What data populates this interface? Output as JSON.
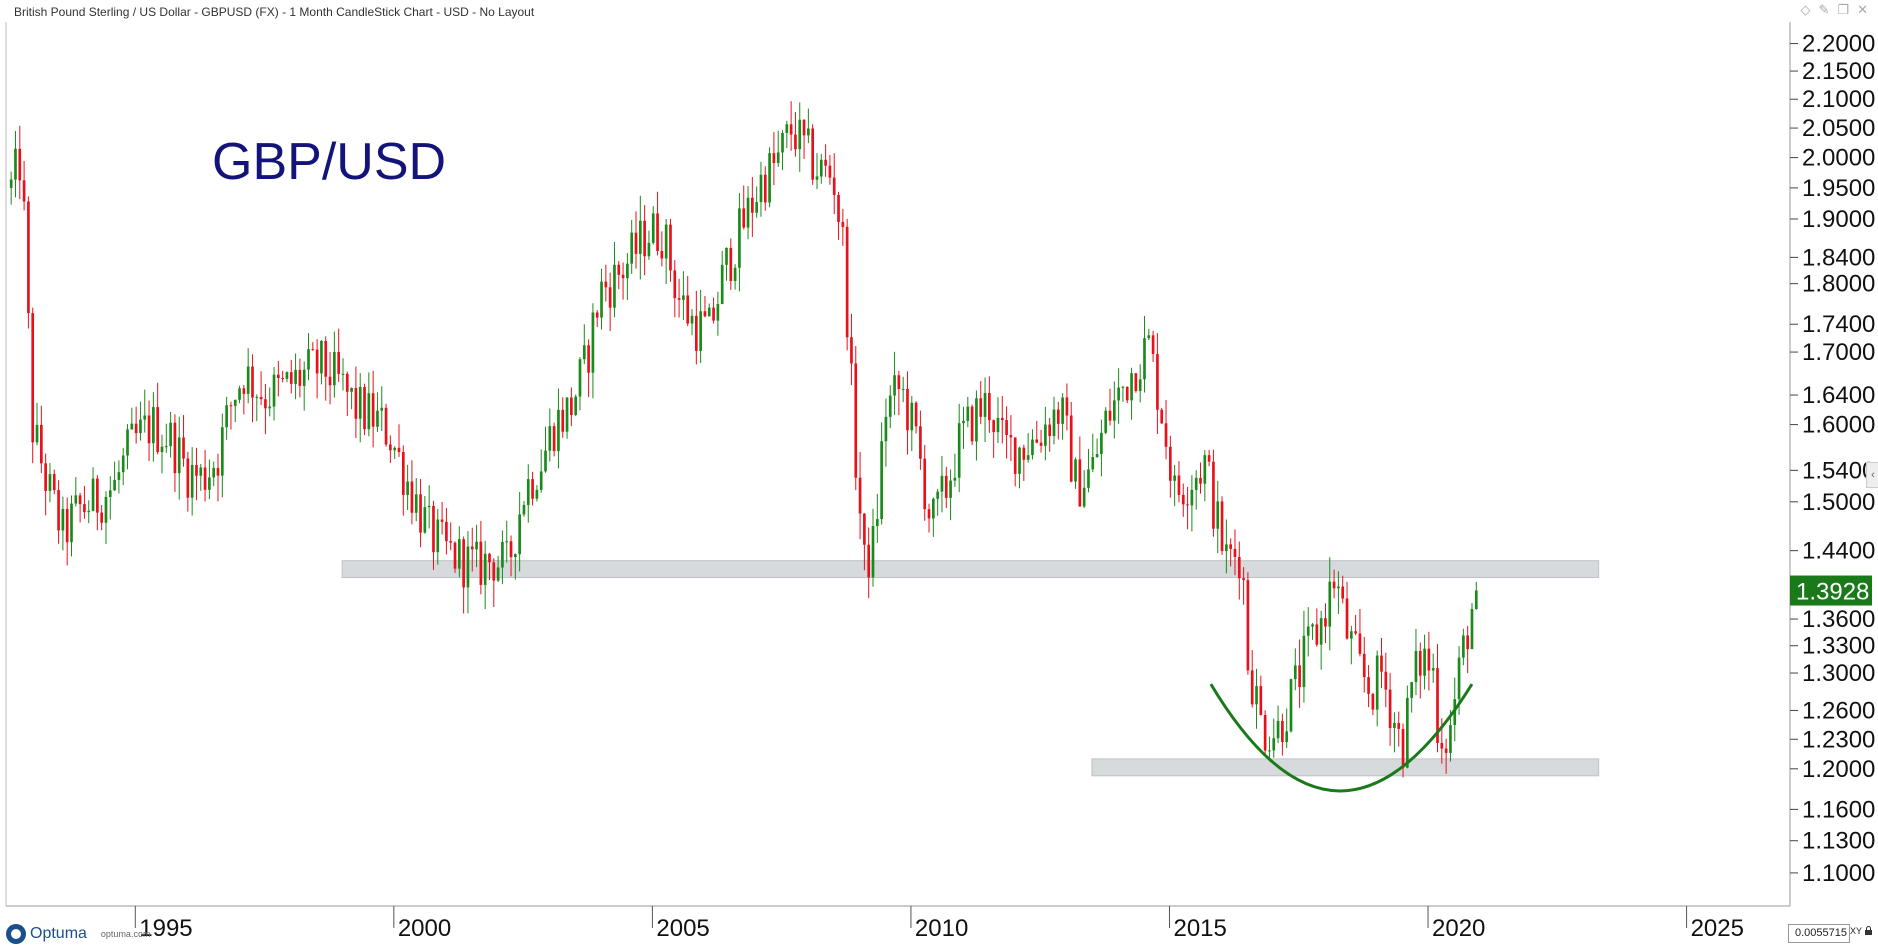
{
  "window": {
    "title": "British Pound Sterling / US Dollar - GBPUSD (FX) - 1 Month CandleStick Chart - USD - No Layout"
  },
  "footer": {
    "brand": "Optuma",
    "url": "optuma.com",
    "zoom_value": "0.0055715",
    "xy_label": "XY"
  },
  "colors": {
    "up": "#1a8a1a",
    "down": "#e8101a",
    "zone": "#d0d3d6",
    "arc": "#1a7a1a",
    "last_price_bg": "#1a7a1a",
    "title": "#13137a"
  },
  "icons": [
    "diamond-icon",
    "pin-icon",
    "window-icon",
    "close-icon",
    "collapse-arrow-icon",
    "lock-icon"
  ],
  "chart_data": {
    "type": "candlestick",
    "title": "GBP/USD",
    "y_scale": "log",
    "ylim": [
      1.07,
      2.24
    ],
    "y_ticks": [
      "2.2000",
      "2.1500",
      "2.1000",
      "2.0500",
      "2.0000",
      "1.9500",
      "1.9000",
      "1.8400",
      "1.8000",
      "1.7400",
      "1.7000",
      "1.6400",
      "1.6000",
      "1.5400",
      "1.5000",
      "1.4400",
      "1.3600",
      "1.3300",
      "1.3000",
      "1.2600",
      "1.2300",
      "1.2000",
      "1.1600",
      "1.1300",
      "1.1000"
    ],
    "x_ticks": [
      "1995",
      "2000",
      "2005",
      "2010",
      "2015",
      "2020",
      "2025"
    ],
    "xlim": [
      1992.5,
      2027.0
    ],
    "last_price": "1.3928",
    "zones": [
      {
        "from": 1999.0,
        "to": 2023.3,
        "low": 1.408,
        "high": 1.428
      },
      {
        "from": 2013.5,
        "to": 2023.3,
        "low": 1.193,
        "high": 1.21
      }
    ],
    "arc": {
      "start": [
        2015.8,
        1.288
      ],
      "mid": [
        2018.3,
        1.178
      ],
      "end": [
        2020.85,
        1.288
      ]
    },
    "anchors": [
      [
        1992.6,
        1.95
      ],
      [
        1992.8,
        2.0
      ],
      [
        1993.0,
        1.6
      ],
      [
        1993.3,
        1.52
      ],
      [
        1993.6,
        1.46
      ],
      [
        1993.9,
        1.49
      ],
      [
        1994.2,
        1.5
      ],
      [
        1994.6,
        1.52
      ],
      [
        1994.9,
        1.57
      ],
      [
        1995.3,
        1.6
      ],
      [
        1995.7,
        1.58
      ],
      [
        1996.0,
        1.54
      ],
      [
        1996.3,
        1.53
      ],
      [
        1996.6,
        1.56
      ],
      [
        1996.9,
        1.64
      ],
      [
        1997.1,
        1.67
      ],
      [
        1997.5,
        1.64
      ],
      [
        1997.9,
        1.65
      ],
      [
        1998.3,
        1.67
      ],
      [
        1998.6,
        1.68
      ],
      [
        1998.9,
        1.66
      ],
      [
        1999.3,
        1.62
      ],
      [
        1999.6,
        1.61
      ],
      [
        1999.9,
        1.59
      ],
      [
        2000.3,
        1.52
      ],
      [
        2000.7,
        1.46
      ],
      [
        2001.0,
        1.44
      ],
      [
        2001.3,
        1.43
      ],
      [
        2001.6,
        1.42
      ],
      [
        2001.9,
        1.43
      ],
      [
        2002.2,
        1.42
      ],
      [
        2002.5,
        1.51
      ],
      [
        2002.9,
        1.56
      ],
      [
        2003.1,
        1.6
      ],
      [
        2003.4,
        1.62
      ],
      [
        2003.7,
        1.68
      ],
      [
        2004.0,
        1.79
      ],
      [
        2004.3,
        1.81
      ],
      [
        2004.6,
        1.84
      ],
      [
        2004.9,
        1.88
      ],
      [
        2005.2,
        1.88
      ],
      [
        2005.5,
        1.78
      ],
      [
        2005.8,
        1.74
      ],
      [
        2006.1,
        1.73
      ],
      [
        2006.4,
        1.82
      ],
      [
        2006.7,
        1.88
      ],
      [
        2006.9,
        1.92
      ],
      [
        2007.1,
        1.96
      ],
      [
        2007.4,
        1.99
      ],
      [
        2007.7,
        2.05
      ],
      [
        2007.9,
        2.02
      ],
      [
        2008.2,
        1.98
      ],
      [
        2008.5,
        1.97
      ],
      [
        2008.7,
        1.85
      ],
      [
        2008.9,
        1.58
      ],
      [
        2009.1,
        1.42
      ],
      [
        2009.3,
        1.45
      ],
      [
        2009.5,
        1.62
      ],
      [
        2009.8,
        1.65
      ],
      [
        2010.1,
        1.58
      ],
      [
        2010.4,
        1.47
      ],
      [
        2010.7,
        1.52
      ],
      [
        2010.9,
        1.57
      ],
      [
        2011.2,
        1.61
      ],
      [
        2011.5,
        1.63
      ],
      [
        2011.8,
        1.57
      ],
      [
        2012.1,
        1.57
      ],
      [
        2012.4,
        1.58
      ],
      [
        2012.7,
        1.61
      ],
      [
        2012.9,
        1.62
      ],
      [
        2013.2,
        1.52
      ],
      [
        2013.5,
        1.54
      ],
      [
        2013.8,
        1.61
      ],
      [
        2014.1,
        1.65
      ],
      [
        2014.4,
        1.69
      ],
      [
        2014.6,
        1.71
      ],
      [
        2014.9,
        1.6
      ],
      [
        2015.1,
        1.51
      ],
      [
        2015.4,
        1.53
      ],
      [
        2015.7,
        1.55
      ],
      [
        2015.9,
        1.48
      ],
      [
        2016.1,
        1.43
      ],
      [
        2016.4,
        1.44
      ],
      [
        2016.5,
        1.32
      ],
      [
        2016.8,
        1.24
      ],
      [
        2017.1,
        1.24
      ],
      [
        2017.4,
        1.28
      ],
      [
        2017.7,
        1.33
      ],
      [
        2017.9,
        1.35
      ],
      [
        2018.2,
        1.41
      ],
      [
        2018.4,
        1.35
      ],
      [
        2018.7,
        1.3
      ],
      [
        2018.9,
        1.28
      ],
      [
        2019.1,
        1.3
      ],
      [
        2019.3,
        1.26
      ],
      [
        2019.5,
        1.22
      ],
      [
        2019.7,
        1.29
      ],
      [
        2019.9,
        1.32
      ],
      [
        2020.1,
        1.3
      ],
      [
        2020.2,
        1.24
      ],
      [
        2020.4,
        1.23
      ],
      [
        2020.6,
        1.3
      ],
      [
        2020.8,
        1.36
      ],
      [
        2020.95,
        1.3928
      ]
    ]
  }
}
